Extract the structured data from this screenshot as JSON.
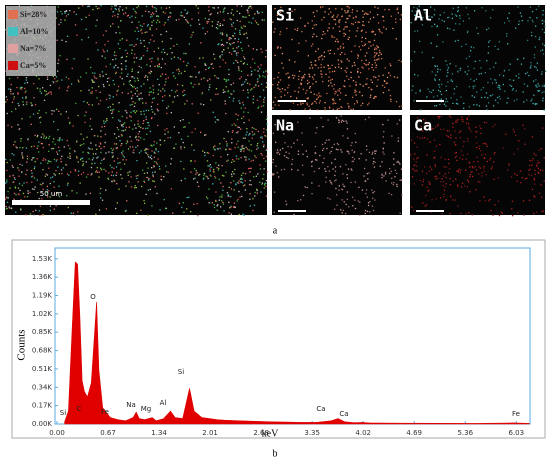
{
  "maps": {
    "legend": [
      "Si=28%",
      "Al=10%",
      "Na=7%",
      "Ca=5%"
    ],
    "scale_label": "50 um",
    "panels": [
      "Si",
      "Al",
      "Na",
      "Ca"
    ],
    "caption": "a"
  },
  "chart_data": {
    "type": "area",
    "caption": "b",
    "xlabel": "keV",
    "ylabel": "Counts",
    "color": "#e00000",
    "x": [
      0.1,
      0.15,
      0.2,
      0.24,
      0.27,
      0.3,
      0.33,
      0.36,
      0.4,
      0.45,
      0.48,
      0.52,
      0.55,
      0.6,
      0.7,
      0.8,
      0.9,
      1.0,
      1.04,
      1.08,
      1.15,
      1.25,
      1.3,
      1.4,
      1.49,
      1.55,
      1.65,
      1.74,
      1.8,
      1.9,
      2.0,
      2.1,
      2.2,
      2.4,
      2.6,
      2.8,
      3.0,
      3.2,
      3.4,
      3.6,
      3.69,
      3.78,
      3.9,
      4.01,
      4.1,
      4.5,
      5.0,
      5.5,
      6.0,
      6.2
    ],
    "values": [
      20,
      120,
      900,
      1500,
      1480,
      1000,
      400,
      300,
      250,
      380,
      700,
      1130,
      500,
      150,
      60,
      40,
      30,
      60,
      110,
      50,
      40,
      60,
      30,
      50,
      120,
      60,
      50,
      330,
      120,
      60,
      50,
      40,
      35,
      30,
      25,
      20,
      18,
      15,
      15,
      30,
      50,
      20,
      12,
      15,
      10,
      8,
      6,
      5,
      10,
      5
    ],
    "xlim": [
      0,
      6.21
    ],
    "ylim": [
      0,
      1630
    ],
    "xticks": [
      {
        "value": 0,
        "label": "0.00"
      },
      0.67,
      1.34,
      2.01,
      2.68,
      3.35,
      4.02,
      4.69,
      5.36,
      6.03
    ],
    "yticks": [
      {
        "value": 0,
        "label": "0.00K"
      },
      {
        "value": 170,
        "label": "0.17K"
      },
      {
        "value": 340,
        "label": "0.34K"
      },
      {
        "value": 510,
        "label": "0.51K"
      },
      {
        "value": 680,
        "label": "0.68K"
      },
      {
        "value": 850,
        "label": "0.85K"
      },
      {
        "value": 1020,
        "label": "1.02K"
      },
      {
        "value": 1190,
        "label": "1.19K"
      },
      {
        "value": 1360,
        "label": "1.36K"
      },
      {
        "value": 1530,
        "label": "1.53K"
      }
    ],
    "annotations": [
      "Si",
      "C",
      "Fe",
      "O",
      "Na",
      "Mg",
      "Al",
      "Si",
      "Ca",
      "Ca",
      "Fe"
    ]
  }
}
